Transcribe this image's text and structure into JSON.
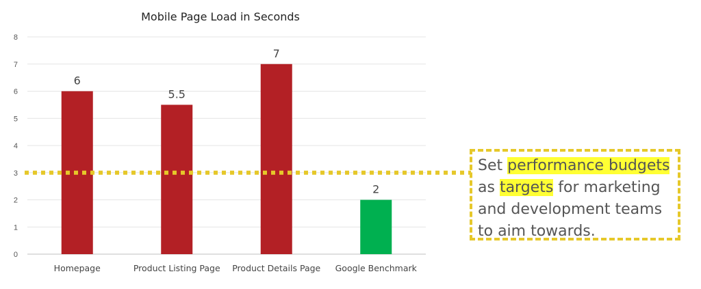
{
  "chart_data": {
    "type": "bar",
    "title": "Mobile Page Load in Seconds",
    "categories": [
      "Homepage",
      "Product Listing Page",
      "Product Details Page",
      "Google Benchmark"
    ],
    "values": [
      6,
      5.5,
      7,
      2
    ],
    "value_labels": [
      "6",
      "5.5",
      "7",
      "2"
    ],
    "bar_colors": [
      "#b32025",
      "#b32025",
      "#b32025",
      "#00b050"
    ],
    "xlabel": "",
    "ylabel": "",
    "ylim": [
      0,
      8
    ],
    "yticks": [
      "0",
      "1",
      "2",
      "3",
      "4",
      "5",
      "6",
      "7",
      "8"
    ],
    "grid": true,
    "reference_line": {
      "value": 3,
      "color": "#e6c82a",
      "style": "dotted"
    }
  },
  "callout": {
    "parts": [
      {
        "text": "Set ",
        "highlight": false
      },
      {
        "text": "performance budgets",
        "highlight": true
      },
      {
        "text": " as ",
        "highlight": false
      },
      {
        "text": "targets",
        "highlight": true
      },
      {
        "text": " for marketing and development teams to aim towards.",
        "highlight": false
      }
    ],
    "border_color": "#e6c82a",
    "highlight_color": "#ffff33"
  }
}
